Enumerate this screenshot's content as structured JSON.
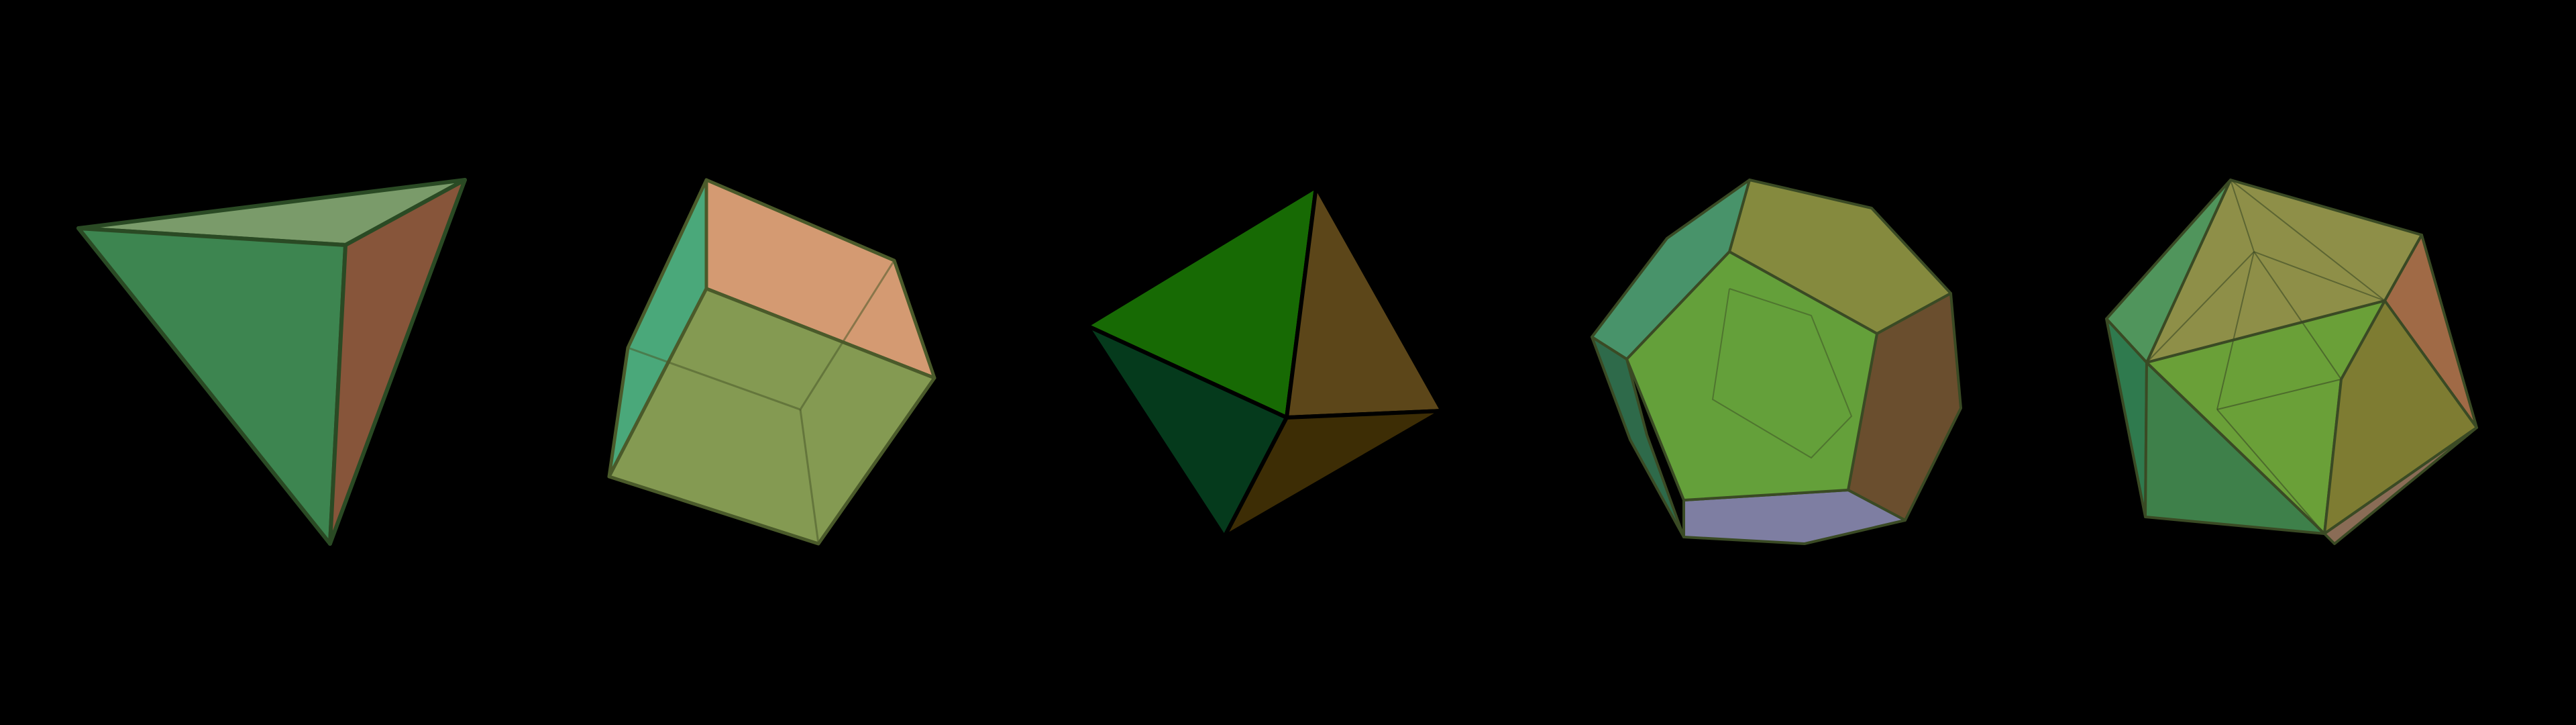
{
  "background": "#000000",
  "solids": [
    {
      "id": "tetrahedron",
      "stroke": "#2a4a24",
      "faces": [
        {
          "id": "top",
          "fill": "#7a9b6a"
        },
        {
          "id": "front",
          "fill": "#3d8550"
        },
        {
          "id": "right",
          "fill": "#87553a"
        }
      ]
    },
    {
      "id": "cube",
      "stroke": "#4a5a2a",
      "faces": [
        {
          "id": "top",
          "fill": "#d49a72"
        },
        {
          "id": "left",
          "fill": "#4aa87a"
        },
        {
          "id": "front",
          "fill": "#849a52"
        }
      ]
    },
    {
      "id": "octahedron",
      "stroke": "#000000",
      "faces": [
        {
          "id": "top-left",
          "fill": "#176a04"
        },
        {
          "id": "top-right",
          "fill": "#5c4619"
        },
        {
          "id": "bottom-left",
          "fill": "#053a1c"
        },
        {
          "id": "bottom-right",
          "fill": "#3d2d05"
        }
      ]
    },
    {
      "id": "dodecahedron",
      "stroke": "#3a4a24",
      "faces": [
        {
          "id": "top-right",
          "fill": "#858a3e"
        },
        {
          "id": "top-left",
          "fill": "#48936a"
        },
        {
          "id": "right",
          "fill": "#6a4e2e"
        },
        {
          "id": "left",
          "fill": "#2e6a4a"
        },
        {
          "id": "bottom",
          "fill": "#7e7ea2"
        },
        {
          "id": "front",
          "fill": "#64a03a"
        }
      ]
    },
    {
      "id": "icosahedron",
      "stroke": "#3a4a24",
      "faces": [
        {
          "id": "top-back",
          "fill": "#8e8f48"
        },
        {
          "id": "top-left",
          "fill": "#50955c"
        },
        {
          "id": "right",
          "fill": "#a06a46"
        },
        {
          "id": "left",
          "fill": "#2f7a4e"
        },
        {
          "id": "bottom",
          "fill": "#3e804a"
        },
        {
          "id": "front",
          "fill": "#6aa038"
        },
        {
          "id": "front-right",
          "fill": "#7e7c32"
        },
        {
          "id": "bottom-right",
          "fill": "#8a6c56"
        }
      ]
    }
  ]
}
